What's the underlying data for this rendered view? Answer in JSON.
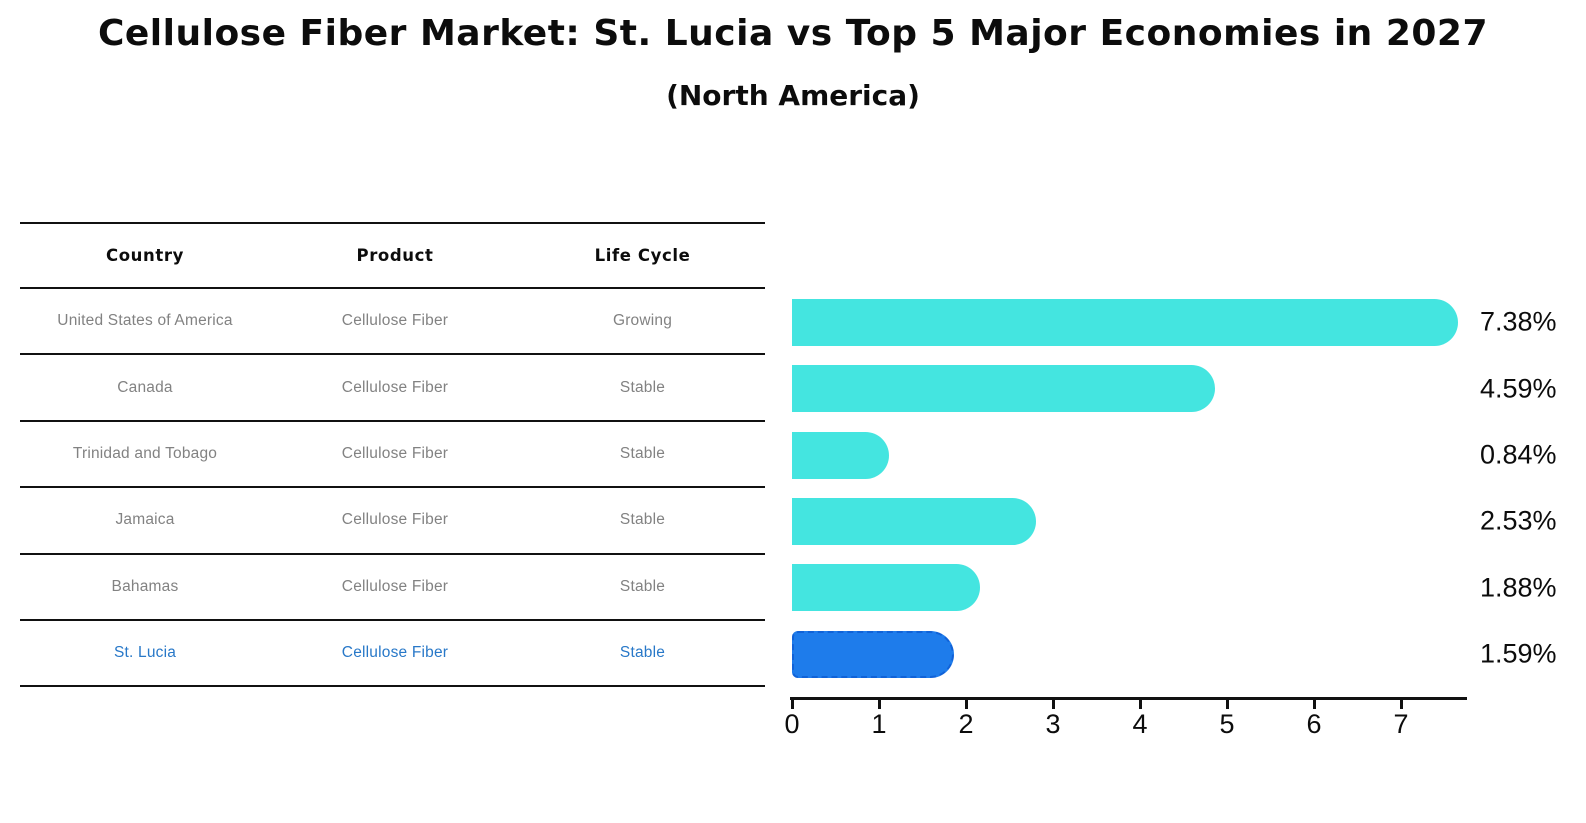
{
  "title": "Cellulose Fiber Market: St. Lucia vs Top 5 Major Economies in 2027",
  "subtitle": "(North America)",
  "table": {
    "headers": [
      "Country",
      "Product",
      "Life Cycle"
    ],
    "rows": [
      {
        "country": "United States of America",
        "product": "Cellulose Fiber",
        "life_cycle": "Growing",
        "highlighted": false
      },
      {
        "country": "Canada",
        "product": "Cellulose Fiber",
        "life_cycle": "Stable",
        "highlighted": false
      },
      {
        "country": "Trinidad and Tobago",
        "product": "Cellulose Fiber",
        "life_cycle": "Stable",
        "highlighted": false
      },
      {
        "country": "Jamaica",
        "product": "Cellulose Fiber",
        "life_cycle": "Stable",
        "highlighted": false
      },
      {
        "country": "Bahamas",
        "product": "Cellulose Fiber",
        "life_cycle": "Stable",
        "highlighted": false
      },
      {
        "country": "St. Lucia",
        "product": "Cellulose Fiber",
        "life_cycle": "Stable",
        "highlighted": true
      }
    ]
  },
  "chart_data": {
    "type": "bar",
    "orientation": "horizontal",
    "title": "Cellulose Fiber Market: St. Lucia vs Top 5 Major Economies in 2027",
    "subtitle": "(North America)",
    "categories": [
      "United States of America",
      "Canada",
      "Trinidad and Tobago",
      "Jamaica",
      "Bahamas",
      "St. Lucia"
    ],
    "values": [
      7.38,
      4.59,
      0.84,
      2.53,
      1.88,
      1.59
    ],
    "value_labels": [
      "7.38%",
      "4.59%",
      "0.84%",
      "2.53%",
      "1.88%",
      "1.59%"
    ],
    "x_ticks": [
      0,
      1,
      2,
      3,
      4,
      5,
      6,
      7
    ],
    "xlim": [
      0,
      7.75
    ],
    "grid": false,
    "legend": false,
    "highlight_index": 5,
    "bar_color": "#44e5e0",
    "highlight_bar_color": "#1e7ceb",
    "highlight_border_color": "#1062d8",
    "label_color": "#0c0c0c",
    "axis_color": "#111111"
  },
  "colors": {
    "background": "#ffffff",
    "table_line": "#111111",
    "header_text": "#0c0c0c",
    "row_text": "#828282",
    "highlight_text": "#2878c8"
  }
}
